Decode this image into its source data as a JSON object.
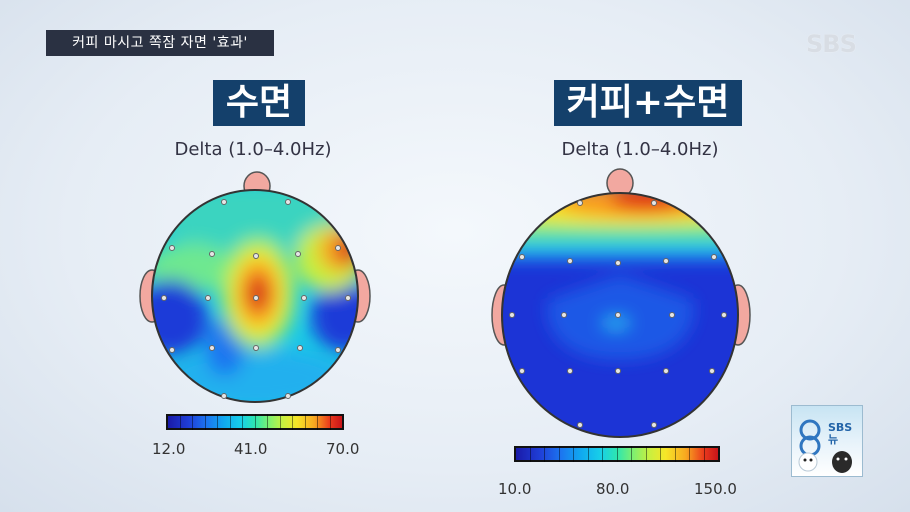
{
  "news_caption": "커피 마시고 쪽잠 자면 '효과'",
  "broadcaster_logo": "SBS",
  "panels": [
    {
      "title": "수면",
      "band": "Delta (1.0–4.0Hz)",
      "colorbar_labels": [
        "12.0",
        "41.0",
        "70.0"
      ]
    },
    {
      "title": "커피+수면",
      "band": "Delta (1.0–4.0Hz)",
      "colorbar_labels": [
        "10.0",
        "80.0",
        "150.0"
      ]
    }
  ],
  "mascot_badge": {
    "line1": "SBS",
    "line2": "뉴"
  },
  "colors": {
    "title_bg": "#14406b",
    "caption_bg": "#2a3142",
    "map_low": "#1a34d8",
    "map_high": "#d01818"
  }
}
